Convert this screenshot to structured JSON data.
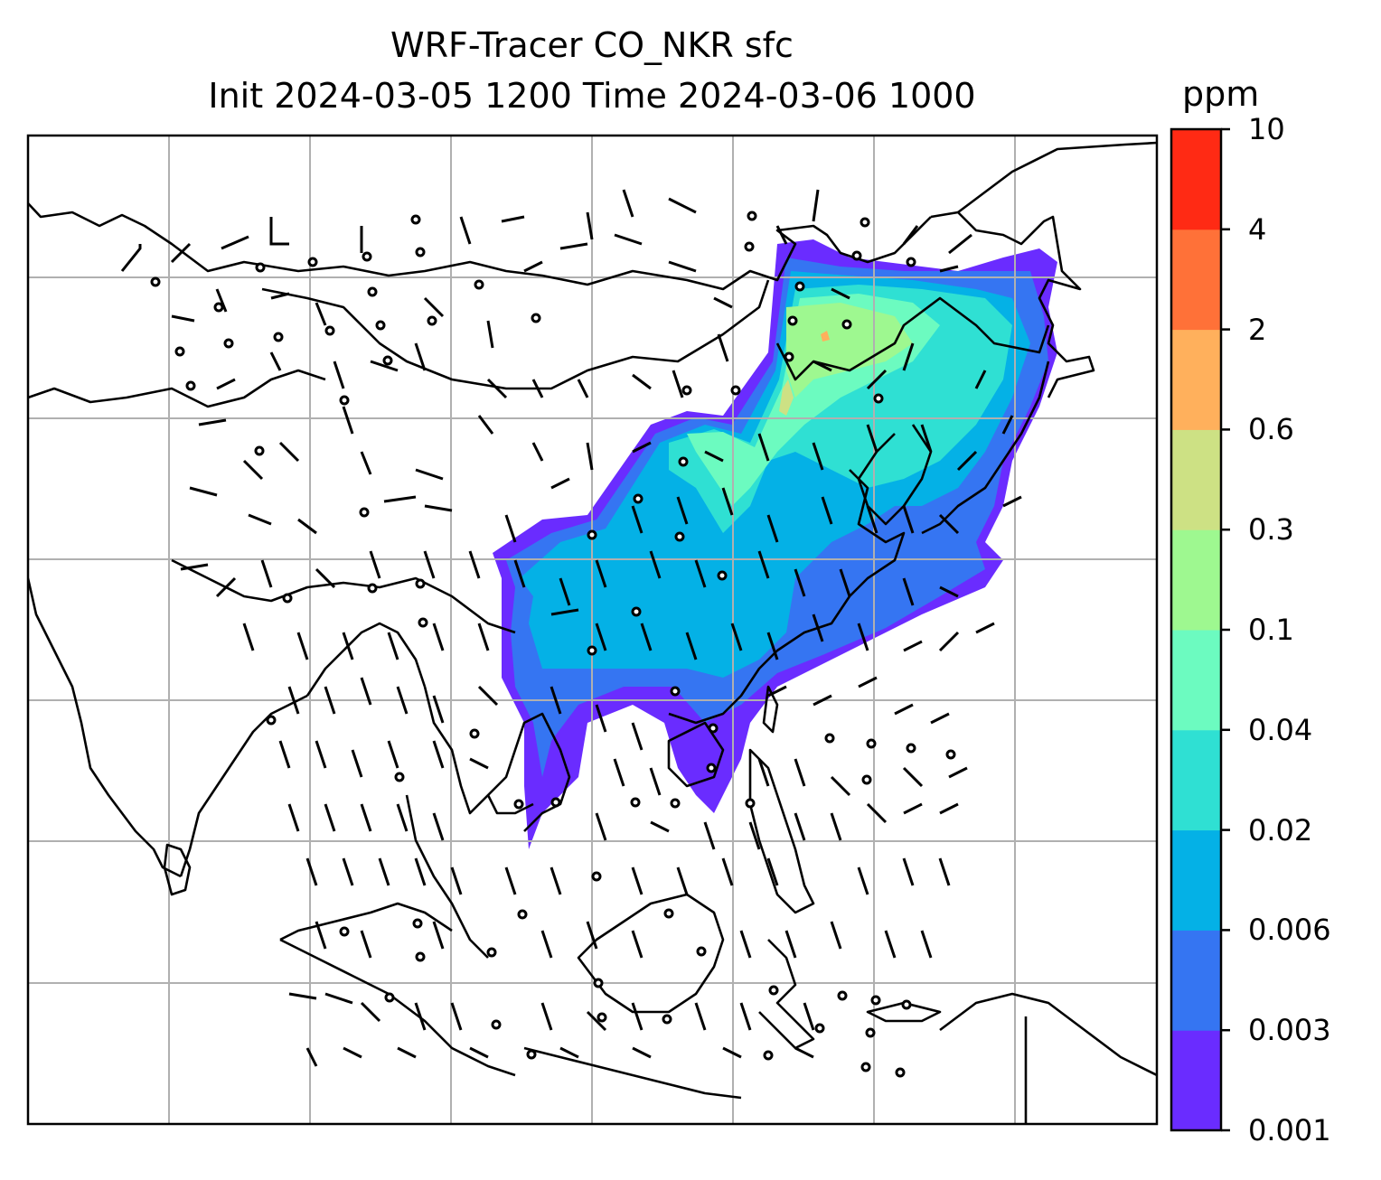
{
  "title": {
    "line1": "WRF-Tracer CO_NKR sfc",
    "line2": "Init 2024-03-05 1200 Time 2024-03-06 1000"
  },
  "colorbar": {
    "unit": "ppm",
    "levels": [
      "0.001",
      "0.003",
      "0.006",
      "0.02",
      "0.04",
      "0.1",
      "0.3",
      "0.6",
      "2",
      "4",
      "10"
    ],
    "colors": [
      "#6a2cff",
      "#3575f2",
      "#04b1e6",
      "#2fe0d3",
      "#6cfbc0",
      "#9ef890",
      "#cde184",
      "#ffb05c",
      "#ff7138",
      "#ff2a14"
    ]
  },
  "map": {
    "gridlines": "on",
    "land_outline_color": "#000000",
    "grid_color": "#b0b0b0",
    "wind_barbs": "on",
    "calm_wind_marker": "circle"
  }
}
